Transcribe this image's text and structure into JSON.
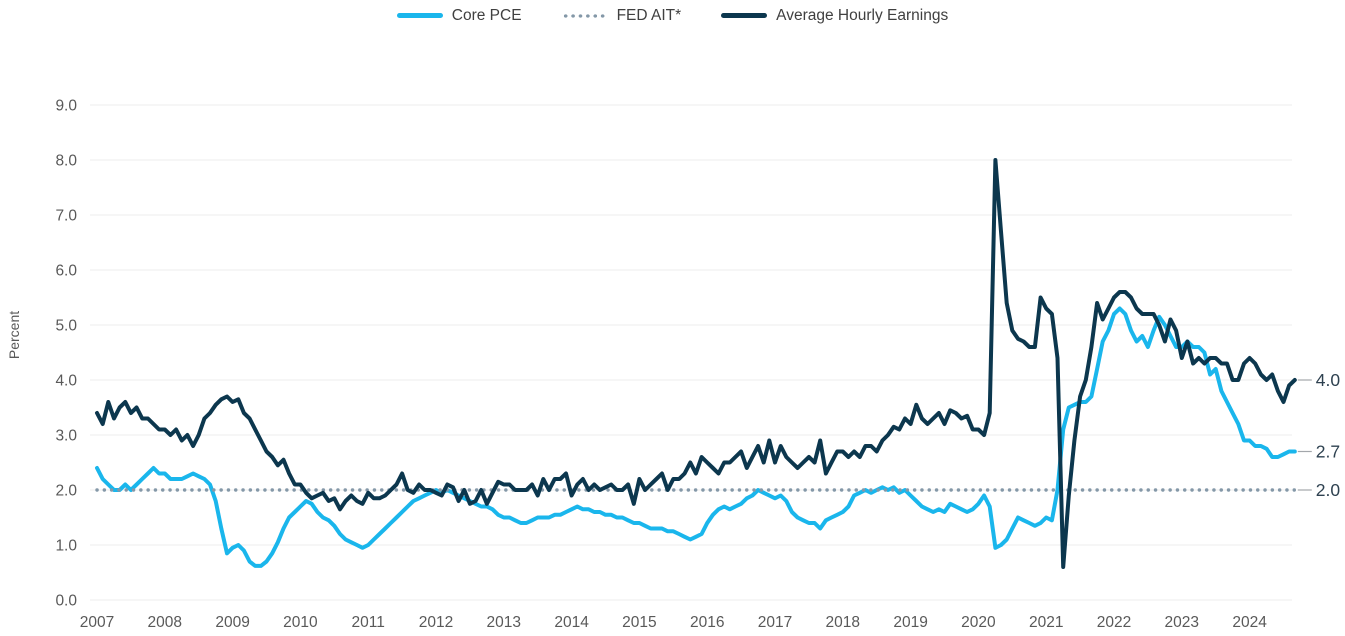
{
  "accent_colors": {
    "core_pce": "#1ab6ec",
    "avg_hourly_earnings": "#0c374e",
    "fed_ait": "#8498a8",
    "gridline": "#ececec",
    "axis_text": "#595959",
    "end_label_text": "#2e4150",
    "legend_text": "#404040"
  },
  "legend": [
    {
      "id": "core-pce",
      "label": "Core PCE",
      "color": "#1ab6ec",
      "style": "solid"
    },
    {
      "id": "fed-ait",
      "label": "FED AIT*",
      "color": "#8498a8",
      "style": "dotted"
    },
    {
      "id": "avg-hourly-earnings",
      "label": "Average Hourly Earnings",
      "color": "#0c374e",
      "style": "solid"
    }
  ],
  "chart_data": {
    "type": "line",
    "title": "",
    "xlabel": "",
    "ylabel": "Percent",
    "ylim": [
      0.0,
      9.0
    ],
    "yticks": [
      "0.0",
      "1.0",
      "2.0",
      "3.0",
      "4.0",
      "5.0",
      "6.0",
      "7.0",
      "8.0",
      "9.0"
    ],
    "xticks": [
      "2007",
      "2008",
      "2009",
      "2010",
      "2011",
      "2012",
      "2013",
      "2014",
      "2015",
      "2016",
      "2017",
      "2018",
      "2019",
      "2020",
      "2021",
      "2022",
      "2023",
      "2024"
    ],
    "x_start": "2007-01",
    "x_end": "2024-09",
    "x_frequency": "monthly",
    "n_months": 213,
    "grid": "horizontal-only",
    "legend_position": "top-center",
    "series": [
      {
        "id": "core-pce",
        "name": "Core PCE",
        "color": "#1ab6ec",
        "style": "solid",
        "end_label": "2.7",
        "values": [
          2.4,
          2.2,
          2.1,
          2.0,
          2.0,
          2.1,
          2.0,
          2.1,
          2.2,
          2.3,
          2.4,
          2.3,
          2.3,
          2.2,
          2.2,
          2.2,
          2.25,
          2.3,
          2.25,
          2.2,
          2.1,
          1.8,
          1.3,
          0.85,
          0.95,
          1.0,
          0.9,
          0.7,
          0.62,
          0.62,
          0.7,
          0.85,
          1.05,
          1.3,
          1.5,
          1.6,
          1.7,
          1.8,
          1.75,
          1.6,
          1.5,
          1.45,
          1.35,
          1.2,
          1.1,
          1.05,
          1.0,
          0.95,
          1.0,
          1.1,
          1.2,
          1.3,
          1.4,
          1.5,
          1.6,
          1.7,
          1.8,
          1.85,
          1.9,
          1.95,
          2.0,
          1.95,
          2.0,
          1.95,
          1.9,
          1.85,
          1.8,
          1.75,
          1.7,
          1.7,
          1.65,
          1.55,
          1.5,
          1.5,
          1.45,
          1.4,
          1.4,
          1.45,
          1.5,
          1.5,
          1.5,
          1.55,
          1.55,
          1.6,
          1.65,
          1.7,
          1.65,
          1.65,
          1.6,
          1.6,
          1.55,
          1.55,
          1.5,
          1.5,
          1.45,
          1.4,
          1.4,
          1.35,
          1.3,
          1.3,
          1.3,
          1.25,
          1.25,
          1.2,
          1.15,
          1.1,
          1.15,
          1.2,
          1.4,
          1.55,
          1.65,
          1.7,
          1.65,
          1.7,
          1.75,
          1.85,
          1.9,
          2.0,
          1.95,
          1.9,
          1.85,
          1.9,
          1.8,
          1.6,
          1.5,
          1.45,
          1.4,
          1.4,
          1.3,
          1.45,
          1.5,
          1.55,
          1.6,
          1.7,
          1.9,
          1.95,
          2.0,
          1.95,
          2.0,
          2.05,
          2.0,
          2.05,
          1.95,
          2.0,
          1.9,
          1.8,
          1.7,
          1.65,
          1.6,
          1.65,
          1.6,
          1.75,
          1.7,
          1.65,
          1.6,
          1.65,
          1.75,
          1.9,
          1.7,
          0.95,
          1.0,
          1.1,
          1.3,
          1.5,
          1.45,
          1.4,
          1.35,
          1.4,
          1.5,
          1.45,
          2.0,
          3.1,
          3.5,
          3.55,
          3.6,
          3.6,
          3.7,
          4.2,
          4.7,
          4.9,
          5.2,
          5.3,
          5.2,
          4.9,
          4.7,
          4.8,
          4.6,
          4.9,
          5.15,
          5.0,
          4.8,
          4.6,
          4.6,
          4.7,
          4.6,
          4.6,
          4.5,
          4.1,
          4.2,
          3.8,
          3.6,
          3.4,
          3.2,
          2.9,
          2.9,
          2.8,
          2.8,
          2.75,
          2.6,
          2.6,
          2.65,
          2.7,
          2.7
        ]
      },
      {
        "id": "fed-ait",
        "name": "FED AIT*",
        "color": "#8498a8",
        "style": "dotted",
        "end_label": "2.0",
        "constant": 2.0
      },
      {
        "id": "avg-hourly-earnings",
        "name": "Average Hourly Earnings",
        "color": "#0c374e",
        "style": "solid",
        "end_label": "4.0",
        "values": [
          3.4,
          3.2,
          3.6,
          3.3,
          3.5,
          3.6,
          3.4,
          3.5,
          3.3,
          3.3,
          3.2,
          3.1,
          3.1,
          3.0,
          3.1,
          2.9,
          3.0,
          2.8,
          3.0,
          3.3,
          3.4,
          3.55,
          3.65,
          3.7,
          3.6,
          3.65,
          3.4,
          3.3,
          3.1,
          2.9,
          2.7,
          2.6,
          2.45,
          2.55,
          2.3,
          2.1,
          2.1,
          1.95,
          1.85,
          1.9,
          1.95,
          1.8,
          1.85,
          1.65,
          1.8,
          1.9,
          1.8,
          1.75,
          1.95,
          1.85,
          1.85,
          1.9,
          2.0,
          2.1,
          2.3,
          2.0,
          1.95,
          2.1,
          2.0,
          2.0,
          1.95,
          1.9,
          2.1,
          2.05,
          1.8,
          2.0,
          1.75,
          1.8,
          2.0,
          1.75,
          1.95,
          2.15,
          2.1,
          2.1,
          2.0,
          2.0,
          2.0,
          2.1,
          1.9,
          2.2,
          2.0,
          2.2,
          2.2,
          2.3,
          1.9,
          2.1,
          2.2,
          2.0,
          2.1,
          2.0,
          2.05,
          2.1,
          2.0,
          2.0,
          2.1,
          1.75,
          2.2,
          2.0,
          2.1,
          2.2,
          2.3,
          2.0,
          2.2,
          2.2,
          2.3,
          2.5,
          2.3,
          2.6,
          2.5,
          2.4,
          2.3,
          2.5,
          2.5,
          2.6,
          2.7,
          2.4,
          2.6,
          2.8,
          2.5,
          2.9,
          2.5,
          2.8,
          2.6,
          2.5,
          2.4,
          2.5,
          2.6,
          2.5,
          2.9,
          2.3,
          2.5,
          2.7,
          2.7,
          2.6,
          2.7,
          2.6,
          2.8,
          2.8,
          2.7,
          2.9,
          3.0,
          3.15,
          3.1,
          3.3,
          3.2,
          3.55,
          3.3,
          3.2,
          3.3,
          3.4,
          3.2,
          3.45,
          3.4,
          3.3,
          3.35,
          3.1,
          3.1,
          3.0,
          3.4,
          8.0,
          6.7,
          5.4,
          4.9,
          4.75,
          4.7,
          4.6,
          4.6,
          5.5,
          5.3,
          5.2,
          4.4,
          0.6,
          1.9,
          2.9,
          3.7,
          4.0,
          4.6,
          5.4,
          5.1,
          5.3,
          5.5,
          5.6,
          5.6,
          5.5,
          5.3,
          5.2,
          5.2,
          5.2,
          5.0,
          4.7,
          5.1,
          4.9,
          4.4,
          4.7,
          4.3,
          4.4,
          4.3,
          4.4,
          4.4,
          4.3,
          4.3,
          4.0,
          4.0,
          4.3,
          4.4,
          4.3,
          4.1,
          4.0,
          4.1,
          3.8,
          3.6,
          3.9,
          4.0
        ]
      }
    ]
  }
}
